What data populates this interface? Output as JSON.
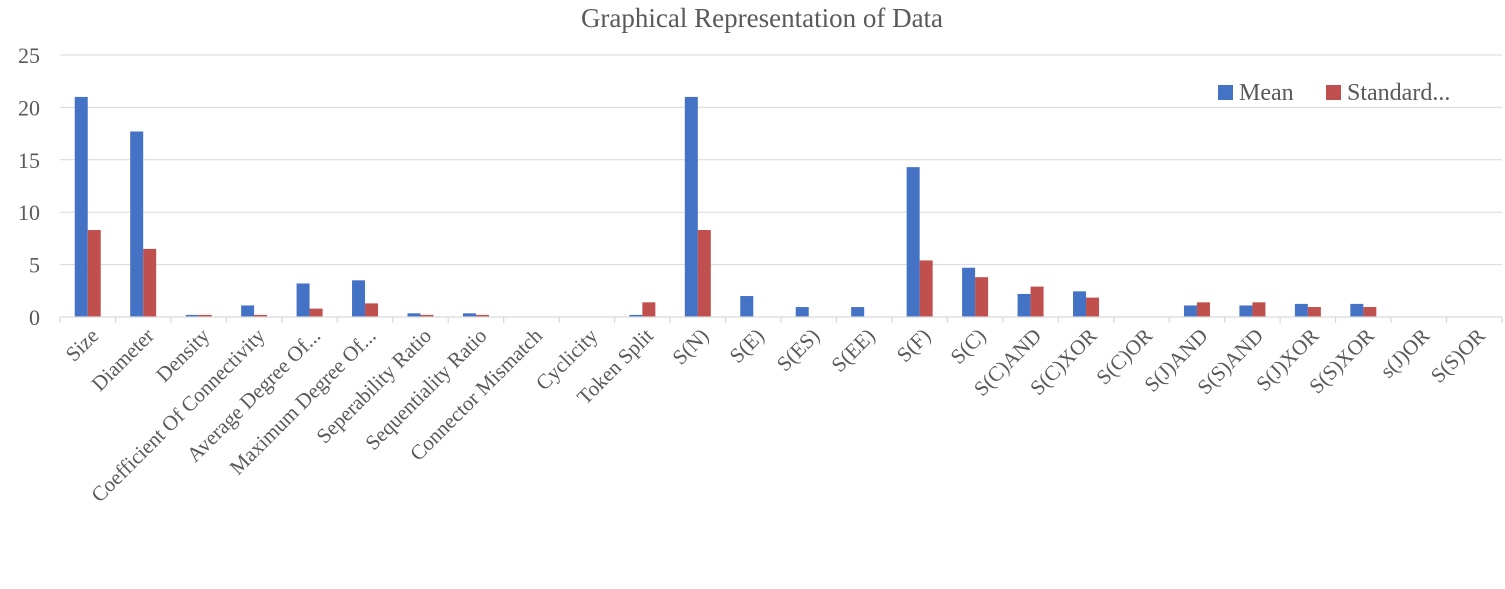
{
  "chart_data": {
    "type": "bar",
    "title": "Graphical Representation of Data",
    "xlabel": "",
    "ylabel": "",
    "ylim": [
      0,
      25
    ],
    "yticks": [
      0,
      5,
      10,
      15,
      20,
      25
    ],
    "grid": true,
    "legend_position": "top-right",
    "categories": [
      "Size",
      "Diameter",
      "Density",
      "Coefficient Of Connectivity",
      "Average Degree Of...",
      "Maximum Degree Of...",
      "Seperability Ratio",
      "Sequentiality Ratio",
      "Connector Mismatch",
      "Cyclicity",
      "Token Split",
      "S(N)",
      "S(E)",
      "S(ES)",
      "S(EE)",
      "S(F)",
      "S(C)",
      "S(C)AND",
      "S(C)XOR",
      "S(C)OR",
      "S(J)AND",
      "S(S)AND",
      "S(J)XOR",
      "S(S)XOR",
      "s(J)OR",
      "S(S)OR"
    ],
    "series": [
      {
        "name": "Mean",
        "color": "#4472c4",
        "values": [
          21,
          17.7,
          0.2,
          1.1,
          3.2,
          3.5,
          0.35,
          0.35,
          0,
          0,
          0.2,
          21,
          2,
          0.95,
          0.95,
          14.3,
          4.7,
          2.2,
          2.45,
          0,
          1.1,
          1.1,
          1.25,
          1.25,
          0,
          0
        ]
      },
      {
        "name": "Standard...",
        "color": "#c0504d",
        "values": [
          8.3,
          6.5,
          0.2,
          0.2,
          0.8,
          1.3,
          0.2,
          0.2,
          0,
          0,
          1.4,
          8.3,
          0,
          0,
          0,
          5.4,
          3.8,
          2.9,
          1.85,
          0,
          1.4,
          1.4,
          0.95,
          0.95,
          0,
          0
        ]
      }
    ]
  }
}
